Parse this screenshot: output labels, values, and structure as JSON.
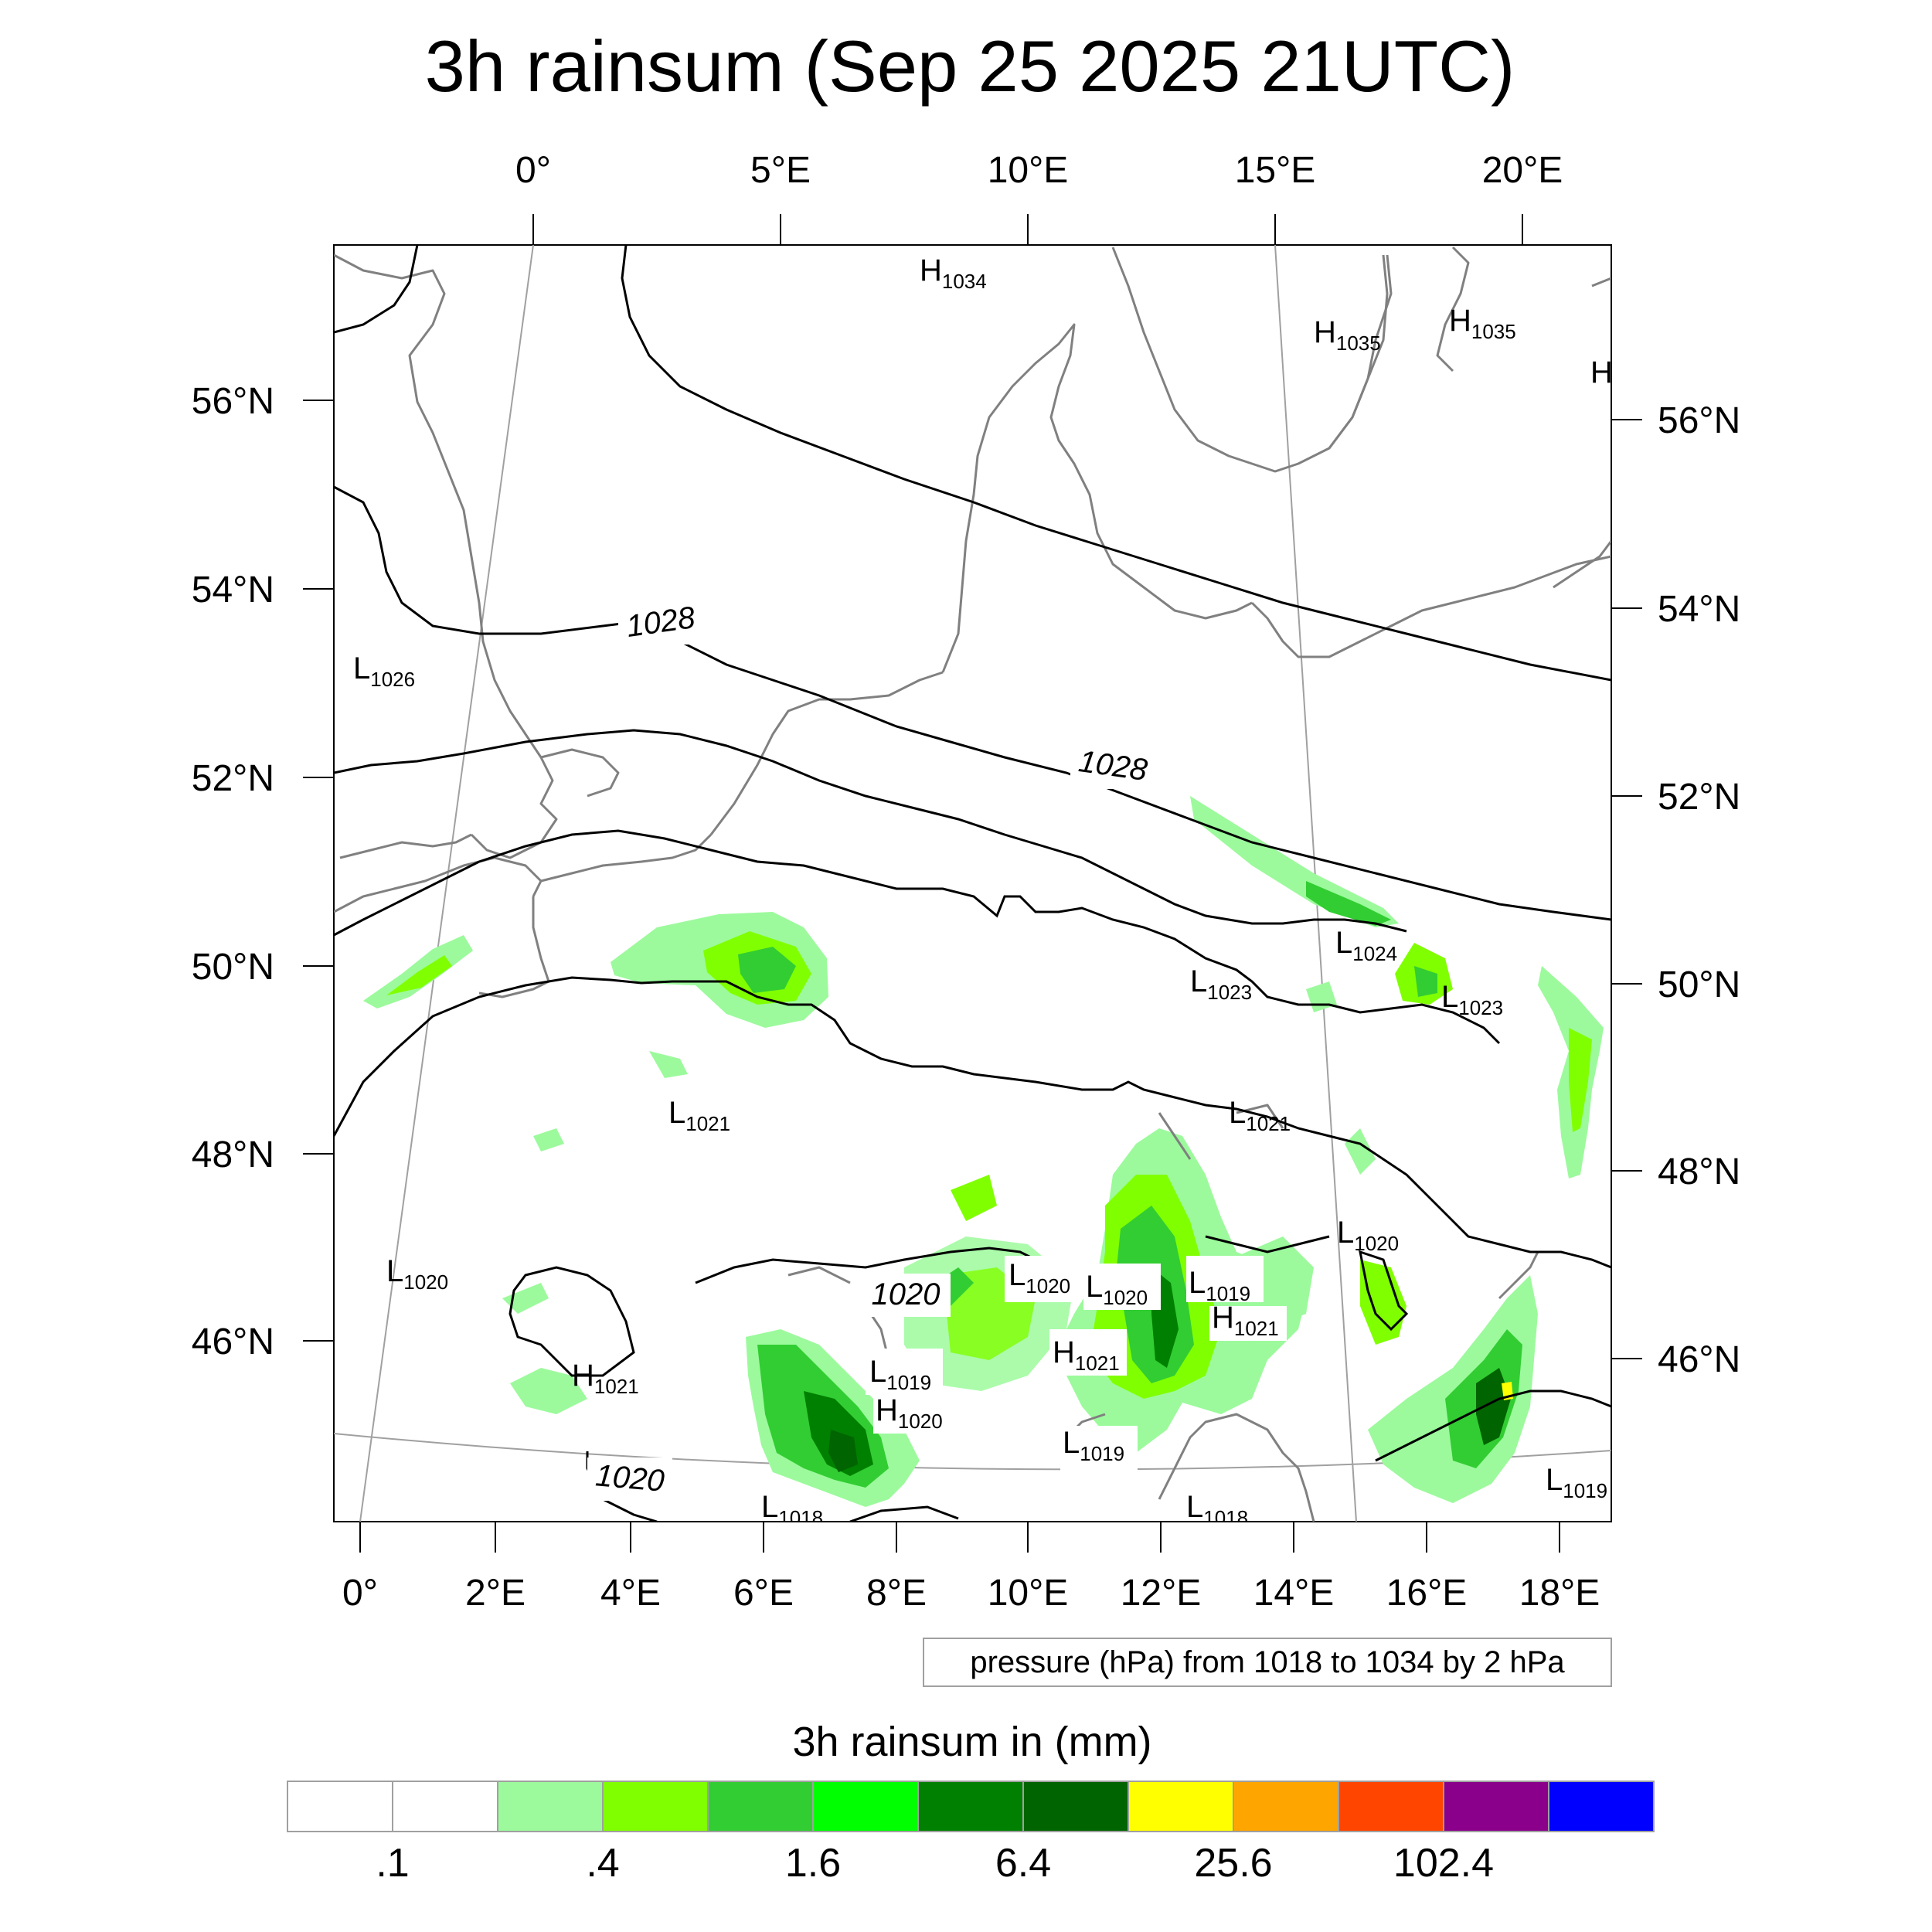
{
  "title": "3h rainsum (Sep 25 2025 21UTC)",
  "axes": {
    "top_lon_labels": [
      "0°",
      "5°E",
      "10°E",
      "15°E",
      "20°E"
    ],
    "bottom_lon_labels": [
      "0°",
      "2°E",
      "4°E",
      "6°E",
      "8°E",
      "10°E",
      "12°E",
      "14°E",
      "16°E",
      "18°E"
    ],
    "left_lat_labels": [
      "56°N",
      "54°N",
      "52°N",
      "50°N",
      "48°N",
      "46°N"
    ],
    "right_lat_labels": [
      "56°N",
      "54°N",
      "52°N",
      "50°N",
      "48°N",
      "46°N"
    ]
  },
  "pressure_note": "pressure (hPa) from 1018 to 1034 by 2 hPa",
  "contour_labels": [
    "1028",
    "1028",
    "1020",
    "1020"
  ],
  "pressure_centers": [
    {
      "kind": "H",
      "value": "1034"
    },
    {
      "kind": "H",
      "value": "1035"
    },
    {
      "kind": "H",
      "value": "1035"
    },
    {
      "kind": "H",
      "value": ""
    },
    {
      "kind": "L",
      "value": "1026"
    },
    {
      "kind": "L",
      "value": "1024"
    },
    {
      "kind": "L",
      "value": "1023"
    },
    {
      "kind": "L",
      "value": "1023"
    },
    {
      "kind": "L",
      "value": "1021"
    },
    {
      "kind": "L",
      "value": "1021"
    },
    {
      "kind": "L",
      "value": "1020"
    },
    {
      "kind": "L",
      "value": "1020"
    },
    {
      "kind": "L",
      "value": "1020"
    },
    {
      "kind": "L",
      "value": "1020"
    },
    {
      "kind": "L",
      "value": "1019"
    },
    {
      "kind": "H",
      "value": "1021"
    },
    {
      "kind": "H",
      "value": "1021"
    },
    {
      "kind": "H",
      "value": "1021"
    },
    {
      "kind": "L",
      "value": "1019"
    },
    {
      "kind": "H",
      "value": "1020"
    },
    {
      "kind": "L",
      "value": "1019"
    },
    {
      "kind": "L",
      "value": "1018"
    },
    {
      "kind": "L",
      "value": "1018"
    },
    {
      "kind": "L",
      "value": "1019"
    }
  ],
  "colorbar": {
    "title": "3h rainsum in (mm)",
    "colors": [
      "#ffffff",
      "#ffffff",
      "#9cfa9c",
      "#80ff00",
      "#32cd32",
      "#00ff00",
      "#008000",
      "#006400",
      "#ffff00",
      "#ffa500",
      "#ff4500",
      "#8b008b",
      "#0000ff"
    ],
    "labels": [
      ".1",
      ".4",
      "1.6",
      "6.4",
      "25.6",
      "102.4"
    ]
  },
  "colors": {
    "coastline": "#808080",
    "isobar": "#000000",
    "gridline": "#a0a0a0"
  }
}
